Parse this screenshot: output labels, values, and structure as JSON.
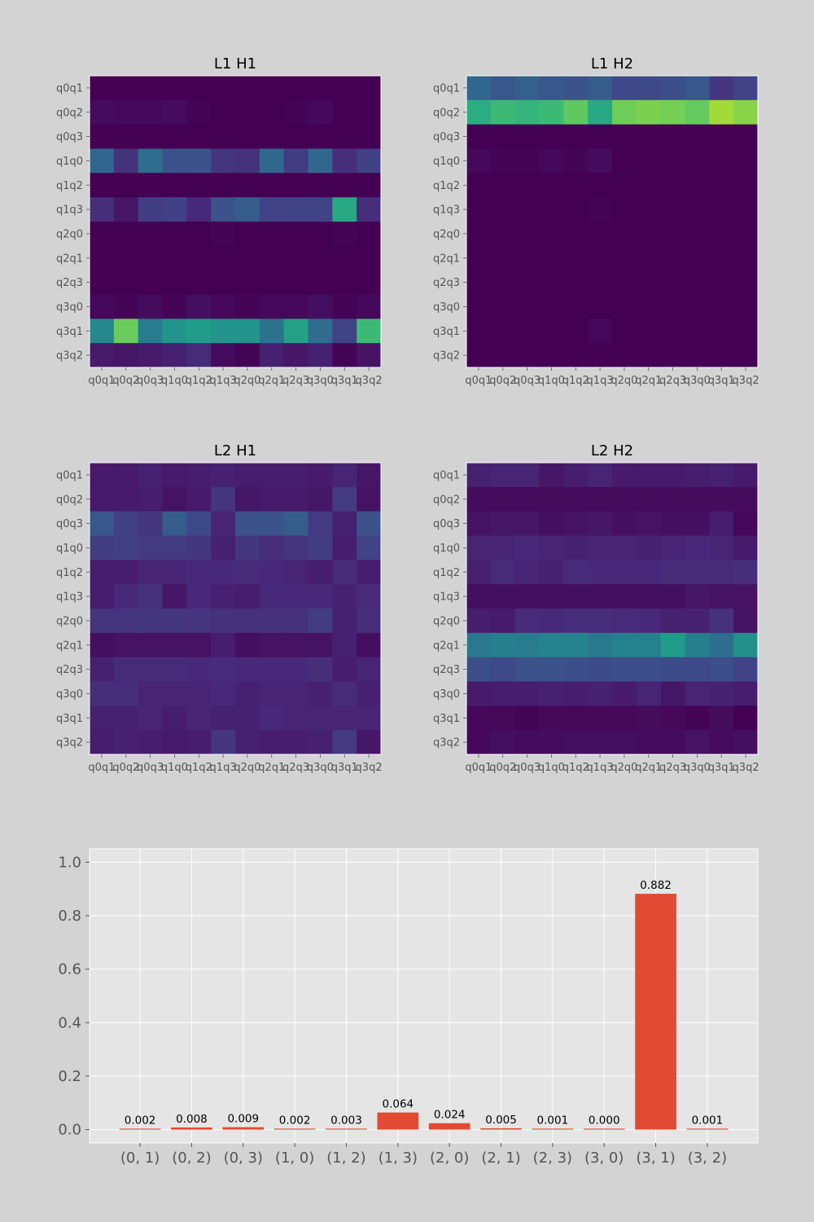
{
  "figure": {
    "background": "#d3d3d3",
    "axes_background": "#e5e5e5",
    "grid_color": "#ffffff",
    "bar_color": "#e24a33",
    "tick_text_color": "#555555"
  },
  "chart_data": [
    {
      "type": "heatmap",
      "title": "L1 H1",
      "colormap": "viridis",
      "xlabels": [
        "q0q1",
        "q0q2",
        "q0q3",
        "q1q0",
        "q1q2",
        "q1q3",
        "q2q0",
        "q2q1",
        "q2q3",
        "q3q0",
        "q3q1",
        "q3q2"
      ],
      "ylabels": [
        "q0q1",
        "q0q2",
        "q0q3",
        "q1q0",
        "q1q2",
        "q1q3",
        "q2q0",
        "q2q1",
        "q2q3",
        "q3q0",
        "q3q1",
        "q3q2"
      ],
      "values": [
        [
          0.0,
          0.0,
          0.0,
          0.0,
          0.0,
          0.0,
          0.0,
          0.0,
          0.0,
          0.0,
          0.0,
          0.0
        ],
        [
          0.03,
          0.02,
          0.02,
          0.03,
          0.01,
          0.0,
          0.0,
          0.0,
          0.01,
          0.02,
          0.0,
          0.0
        ],
        [
          0.0,
          0.0,
          0.0,
          0.0,
          0.0,
          0.0,
          0.0,
          0.0,
          0.0,
          0.0,
          0.0,
          0.0
        ],
        [
          0.33,
          0.14,
          0.35,
          0.25,
          0.25,
          0.15,
          0.14,
          0.33,
          0.18,
          0.33,
          0.13,
          0.19
        ],
        [
          0.0,
          0.0,
          0.0,
          0.0,
          0.0,
          0.0,
          0.0,
          0.0,
          0.0,
          0.0,
          0.0,
          0.0
        ],
        [
          0.13,
          0.06,
          0.18,
          0.19,
          0.11,
          0.25,
          0.29,
          0.2,
          0.2,
          0.2,
          0.6,
          0.13
        ],
        [
          0.0,
          0.0,
          0.0,
          0.0,
          0.0,
          0.01,
          0.0,
          0.0,
          0.0,
          0.0,
          0.01,
          0.0
        ],
        [
          0.0,
          0.0,
          0.0,
          0.0,
          0.0,
          0.0,
          0.0,
          0.0,
          0.0,
          0.0,
          0.0,
          0.0
        ],
        [
          0.0,
          0.0,
          0.0,
          0.0,
          0.0,
          0.0,
          0.0,
          0.0,
          0.0,
          0.0,
          0.0,
          0.0
        ],
        [
          0.02,
          0.01,
          0.03,
          0.01,
          0.04,
          0.02,
          0.01,
          0.02,
          0.02,
          0.04,
          0.01,
          0.02
        ],
        [
          0.47,
          0.77,
          0.42,
          0.52,
          0.55,
          0.52,
          0.52,
          0.38,
          0.57,
          0.35,
          0.2,
          0.68
        ],
        [
          0.07,
          0.06,
          0.07,
          0.09,
          0.12,
          0.03,
          0.01,
          0.09,
          0.06,
          0.09,
          0.01,
          0.05
        ]
      ]
    },
    {
      "type": "heatmap",
      "title": "L1 H2",
      "colormap": "viridis",
      "xlabels": [
        "q0q1",
        "q0q2",
        "q0q3",
        "q1q0",
        "q1q2",
        "q1q3",
        "q2q0",
        "q2q1",
        "q2q3",
        "q3q0",
        "q3q1",
        "q3q2"
      ],
      "ylabels": [
        "q0q1",
        "q0q2",
        "q0q3",
        "q1q0",
        "q1q2",
        "q1q3",
        "q2q0",
        "q2q1",
        "q2q3",
        "q3q0",
        "q3q1",
        "q3q2"
      ],
      "values": [
        [
          0.33,
          0.27,
          0.3,
          0.27,
          0.25,
          0.29,
          0.22,
          0.22,
          0.24,
          0.27,
          0.16,
          0.2
        ],
        [
          0.62,
          0.68,
          0.66,
          0.68,
          0.75,
          0.6,
          0.78,
          0.8,
          0.79,
          0.76,
          0.86,
          0.82
        ],
        [
          0.0,
          0.0,
          0.0,
          0.0,
          0.0,
          0.0,
          0.0,
          0.0,
          0.0,
          0.0,
          0.0,
          0.0
        ],
        [
          0.02,
          0.01,
          0.01,
          0.02,
          0.01,
          0.03,
          0.0,
          0.0,
          0.0,
          0.0,
          0.0,
          0.0
        ],
        [
          0.0,
          0.0,
          0.0,
          0.0,
          0.0,
          0.0,
          0.0,
          0.0,
          0.0,
          0.0,
          0.0,
          0.0
        ],
        [
          0.0,
          0.0,
          0.0,
          0.0,
          0.0,
          0.01,
          0.0,
          0.0,
          0.0,
          0.0,
          0.0,
          0.0
        ],
        [
          0.0,
          0.0,
          0.0,
          0.0,
          0.0,
          0.0,
          0.0,
          0.0,
          0.0,
          0.0,
          0.0,
          0.0
        ],
        [
          0.0,
          0.0,
          0.0,
          0.0,
          0.0,
          0.0,
          0.0,
          0.0,
          0.0,
          0.0,
          0.0,
          0.0
        ],
        [
          0.0,
          0.0,
          0.0,
          0.0,
          0.0,
          0.0,
          0.0,
          0.0,
          0.0,
          0.0,
          0.0,
          0.0
        ],
        [
          0.0,
          0.0,
          0.0,
          0.0,
          0.0,
          0.0,
          0.0,
          0.0,
          0.0,
          0.0,
          0.0,
          0.0
        ],
        [
          0.0,
          0.0,
          0.0,
          0.0,
          0.0,
          0.02,
          0.0,
          0.0,
          0.0,
          0.0,
          0.0,
          0.0
        ],
        [
          0.0,
          0.0,
          0.0,
          0.0,
          0.0,
          0.0,
          0.0,
          0.0,
          0.0,
          0.0,
          0.0,
          0.0
        ]
      ]
    },
    {
      "type": "heatmap",
      "title": "L2 H1",
      "colormap": "viridis",
      "xlabels": [
        "q0q1",
        "q0q2",
        "q0q3",
        "q1q0",
        "q1q2",
        "q1q3",
        "q2q0",
        "q2q1",
        "q2q3",
        "q3q0",
        "q3q1",
        "q3q2"
      ],
      "ylabels": [
        "q0q1",
        "q0q2",
        "q0q3",
        "q1q0",
        "q1q2",
        "q1q3",
        "q2q0",
        "q2q1",
        "q2q3",
        "q3q0",
        "q3q1",
        "q3q2"
      ],
      "values": [
        [
          0.07,
          0.07,
          0.09,
          0.07,
          0.08,
          0.09,
          0.08,
          0.08,
          0.08,
          0.07,
          0.1,
          0.06
        ],
        [
          0.07,
          0.07,
          0.08,
          0.05,
          0.07,
          0.15,
          0.06,
          0.07,
          0.07,
          0.06,
          0.17,
          0.05
        ],
        [
          0.27,
          0.19,
          0.16,
          0.29,
          0.22,
          0.1,
          0.25,
          0.25,
          0.29,
          0.17,
          0.09,
          0.25
        ],
        [
          0.18,
          0.19,
          0.17,
          0.17,
          0.16,
          0.09,
          0.16,
          0.13,
          0.15,
          0.18,
          0.08,
          0.2
        ],
        [
          0.08,
          0.08,
          0.1,
          0.1,
          0.11,
          0.11,
          0.12,
          0.11,
          0.1,
          0.08,
          0.12,
          0.08
        ],
        [
          0.08,
          0.11,
          0.14,
          0.06,
          0.11,
          0.09,
          0.08,
          0.11,
          0.11,
          0.11,
          0.09,
          0.12
        ],
        [
          0.15,
          0.15,
          0.16,
          0.16,
          0.15,
          0.14,
          0.14,
          0.14,
          0.14,
          0.18,
          0.09,
          0.13
        ],
        [
          0.04,
          0.05,
          0.05,
          0.05,
          0.05,
          0.08,
          0.04,
          0.05,
          0.05,
          0.05,
          0.09,
          0.04
        ],
        [
          0.09,
          0.12,
          0.12,
          0.12,
          0.11,
          0.12,
          0.11,
          0.11,
          0.11,
          0.13,
          0.08,
          0.1
        ],
        [
          0.13,
          0.13,
          0.1,
          0.1,
          0.1,
          0.11,
          0.09,
          0.1,
          0.1,
          0.09,
          0.12,
          0.09
        ],
        [
          0.09,
          0.09,
          0.1,
          0.08,
          0.1,
          0.09,
          0.09,
          0.11,
          0.1,
          0.1,
          0.1,
          0.1
        ],
        [
          0.08,
          0.09,
          0.08,
          0.07,
          0.08,
          0.16,
          0.09,
          0.08,
          0.08,
          0.09,
          0.17,
          0.06
        ]
      ]
    },
    {
      "type": "heatmap",
      "title": "L2 H2",
      "colormap": "viridis",
      "xlabels": [
        "q0q1",
        "q0q2",
        "q0q3",
        "q1q0",
        "q1q2",
        "q1q3",
        "q2q0",
        "q2q1",
        "q2q3",
        "q3q0",
        "q3q1",
        "q3q2"
      ],
      "ylabels": [
        "q0q1",
        "q0q2",
        "q0q3",
        "q1q0",
        "q1q2",
        "q1q3",
        "q2q0",
        "q2q1",
        "q2q3",
        "q3q0",
        "q3q1",
        "q3q2"
      ],
      "values": [
        [
          0.09,
          0.1,
          0.1,
          0.06,
          0.08,
          0.1,
          0.07,
          0.07,
          0.07,
          0.08,
          0.09,
          0.07
        ],
        [
          0.03,
          0.03,
          0.03,
          0.03,
          0.03,
          0.03,
          0.03,
          0.03,
          0.03,
          0.03,
          0.03,
          0.03
        ],
        [
          0.05,
          0.06,
          0.06,
          0.04,
          0.05,
          0.06,
          0.04,
          0.05,
          0.04,
          0.04,
          0.08,
          0.02
        ],
        [
          0.1,
          0.1,
          0.11,
          0.1,
          0.09,
          0.1,
          0.1,
          0.09,
          0.1,
          0.11,
          0.1,
          0.07
        ],
        [
          0.09,
          0.12,
          0.1,
          0.09,
          0.12,
          0.11,
          0.11,
          0.11,
          0.12,
          0.12,
          0.12,
          0.13
        ],
        [
          0.04,
          0.04,
          0.04,
          0.04,
          0.04,
          0.04,
          0.04,
          0.04,
          0.04,
          0.06,
          0.05,
          0.05
        ],
        [
          0.08,
          0.07,
          0.12,
          0.11,
          0.13,
          0.13,
          0.12,
          0.11,
          0.09,
          0.09,
          0.14,
          0.05
        ],
        [
          0.4,
          0.43,
          0.42,
          0.45,
          0.45,
          0.4,
          0.44,
          0.44,
          0.55,
          0.43,
          0.36,
          0.5
        ],
        [
          0.24,
          0.22,
          0.25,
          0.25,
          0.24,
          0.23,
          0.24,
          0.24,
          0.23,
          0.22,
          0.24,
          0.2
        ],
        [
          0.07,
          0.08,
          0.08,
          0.09,
          0.08,
          0.09,
          0.07,
          0.1,
          0.06,
          0.1,
          0.09,
          0.08
        ],
        [
          0.02,
          0.02,
          0.01,
          0.02,
          0.02,
          0.02,
          0.02,
          0.03,
          0.02,
          0.01,
          0.03,
          0.0
        ],
        [
          0.02,
          0.04,
          0.03,
          0.03,
          0.04,
          0.04,
          0.04,
          0.03,
          0.03,
          0.05,
          0.03,
          0.04
        ]
      ]
    },
    {
      "type": "bar",
      "title": "",
      "xlabel": "",
      "ylabel": "",
      "categories": [
        "(0, 1)",
        "(0, 2)",
        "(0, 3)",
        "(1, 0)",
        "(1, 2)",
        "(1, 3)",
        "(2, 0)",
        "(2, 1)",
        "(2, 3)",
        "(3, 0)",
        "(3, 1)",
        "(3, 2)"
      ],
      "values": [
        0.002,
        0.008,
        0.009,
        0.002,
        0.003,
        0.064,
        0.024,
        0.005,
        0.001,
        0.0,
        0.882,
        0.001
      ],
      "value_labels": [
        "0.002",
        "0.008",
        "0.009",
        "0.002",
        "0.003",
        "0.064",
        "0.024",
        "0.005",
        "0.001",
        "0.000",
        "0.882",
        "0.001"
      ],
      "yticks": [
        0.0,
        0.2,
        0.4,
        0.6,
        0.8,
        1.0
      ],
      "ytick_labels": [
        "0.0",
        "0.2",
        "0.4",
        "0.6",
        "0.8",
        "1.0"
      ],
      "ylim": [
        -0.05,
        1.05
      ],
      "grid": true,
      "color": "#e24a33"
    }
  ]
}
